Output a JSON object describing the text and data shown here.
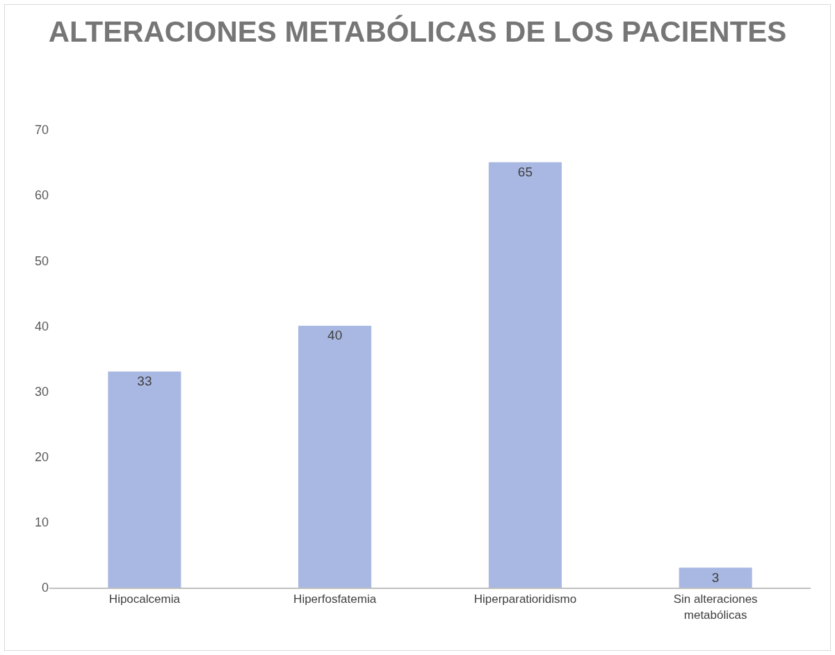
{
  "chart_data": {
    "type": "bar",
    "title": "ALTERACIONES METABÓLICAS DE LOS PACIENTES",
    "categories": [
      "Hipocalcemia",
      "Hiperfosfatemia",
      "Hiperparatioridismo",
      "Sin alteraciones metabólicas"
    ],
    "values": [
      33,
      40,
      65,
      3
    ],
    "color": "#a9b8e2",
    "ylim": [
      0,
      70
    ],
    "yticks": [
      0,
      10,
      20,
      30,
      40,
      50,
      60,
      70
    ],
    "grid": false,
    "data_labels": true
  }
}
